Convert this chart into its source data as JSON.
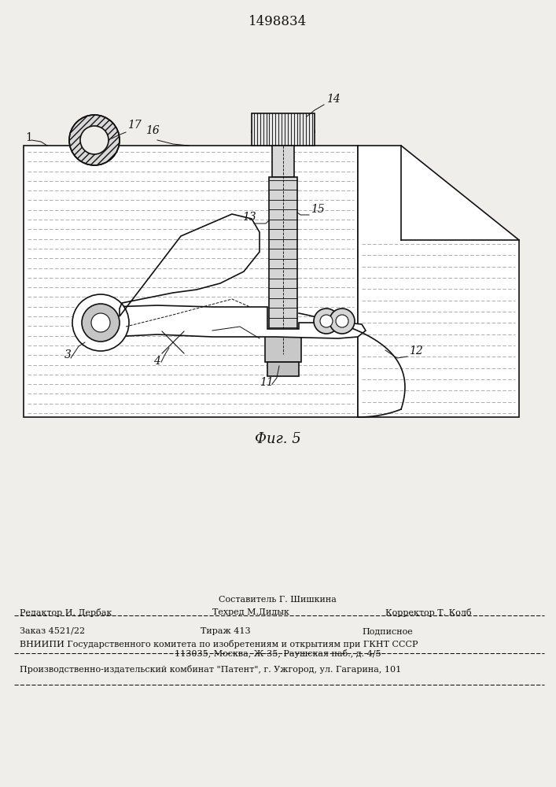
{
  "patent_number": "1498834",
  "fig_label": "Фиг. 5",
  "bg_color": "#f0eeea",
  "line_color": "#111111",
  "footer": {
    "composer": "Составитель Г. Шишкина",
    "editor": "Редактор И. Дербак",
    "techred": "Техред М.Дидык",
    "corrector": "Корректор Т. Колб",
    "order": "Заказ 4521/22",
    "tirazh": "Тираж 413",
    "podpisnoe": "Подписное",
    "vniipи": "ВНИИПИ Государственного комитета по изобретениям и открытиям при ГКНТ СССР",
    "address": "113035, Москва, Ж-35, Раушская наб., д. 4/5",
    "production": "Производственно-издательский комбинат \"Патент\", г. Ужгород, ул. Гагарина, 101"
  }
}
